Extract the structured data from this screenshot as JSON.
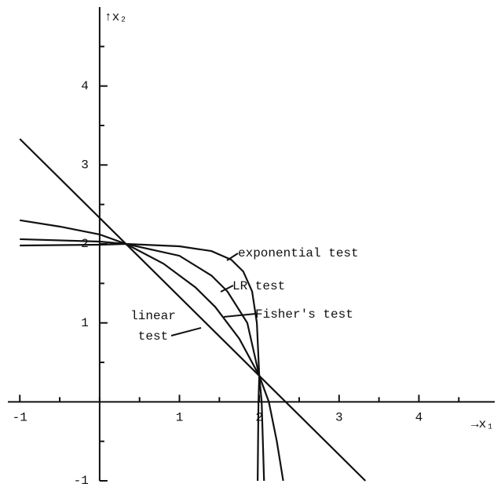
{
  "chart_data": {
    "type": "line",
    "x_label": "→x₁",
    "y_label": "↑x₂",
    "xlim": [
      -1.15,
      4.95
    ],
    "ylim": [
      -1,
      5
    ],
    "xticks": [
      -1,
      1,
      2,
      3,
      4
    ],
    "yticks": [
      -1,
      1,
      2,
      3,
      4
    ],
    "xminorticks": [
      -0.5,
      0,
      0.5,
      1.5,
      2.5,
      3.5,
      4.5
    ],
    "yminorticks": [
      -0.5,
      0.5,
      1.5,
      2.5,
      3.5,
      4.5
    ],
    "series": [
      {
        "name": "exponential test",
        "color": "#111111",
        "x": [
          -1,
          0,
          0.33,
          1,
          1.4,
          1.65,
          1.8,
          1.91,
          1.97,
          2.0,
          1.99,
          1.98
        ],
        "values": [
          1.98,
          1.99,
          2.0,
          1.97,
          1.91,
          1.8,
          1.65,
          1.4,
          1.0,
          0.33,
          0,
          -1
        ]
      },
      {
        "name": "LR test",
        "color": "#111111",
        "x": [
          -1,
          0,
          0.33,
          1,
          1.4,
          1.6,
          1.85,
          2.0,
          2.03,
          2.06
        ],
        "values": [
          2.06,
          2.03,
          2.0,
          1.85,
          1.6,
          1.4,
          1.0,
          0.33,
          0,
          -1
        ]
      },
      {
        "name": "Fisher's test",
        "color": "#111111",
        "x": [
          -1,
          -0.5,
          0,
          0.33,
          0.8,
          1.2,
          1.45,
          1.75,
          2.0,
          2.12,
          2.22,
          2.3
        ],
        "values": [
          2.3,
          2.22,
          2.12,
          2.0,
          1.75,
          1.45,
          1.2,
          0.8,
          0.33,
          0,
          -0.5,
          -1
        ]
      },
      {
        "name": "linear test",
        "color": "#111111",
        "x": [
          -1,
          3.33
        ],
        "values": [
          3.33,
          -1
        ]
      }
    ]
  }
}
